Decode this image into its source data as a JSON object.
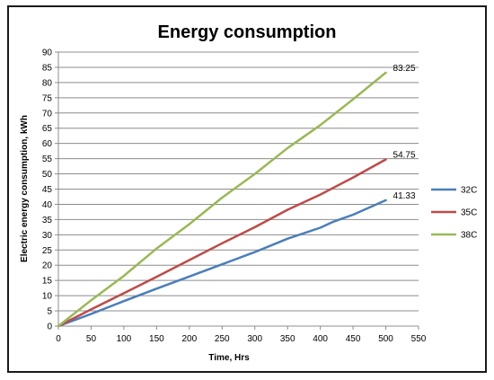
{
  "chart_data": {
    "type": "line",
    "title": "Energy consumption",
    "xlabel": "Time, Hrs",
    "ylabel": "Electric energy consumption, kWh",
    "xlim": [
      0,
      550
    ],
    "ylim": [
      0,
      90
    ],
    "xticks": [
      0,
      50,
      100,
      150,
      200,
      250,
      300,
      350,
      400,
      450,
      500,
      550
    ],
    "yticks": [
      0,
      5,
      10,
      15,
      20,
      25,
      30,
      35,
      40,
      45,
      50,
      55,
      60,
      65,
      70,
      75,
      80,
      85,
      90
    ],
    "grid": "horizontal",
    "legend_position": "right",
    "series": [
      {
        "name": "32C",
        "color": "#4a7ebb",
        "points": [
          [
            0,
            0
          ],
          [
            50,
            4
          ],
          [
            100,
            8.2
          ],
          [
            150,
            12.3
          ],
          [
            200,
            16.3
          ],
          [
            250,
            20.3
          ],
          [
            300,
            24.3
          ],
          [
            350,
            28.7
          ],
          [
            400,
            32.3
          ],
          [
            420,
            34.3
          ],
          [
            450,
            36.6
          ],
          [
            500,
            41.33
          ]
        ],
        "end_label": "41.33"
      },
      {
        "name": "35C",
        "color": "#be4b48",
        "points": [
          [
            0,
            0
          ],
          [
            50,
            5.5
          ],
          [
            100,
            10.8
          ],
          [
            150,
            16.2
          ],
          [
            200,
            21.7
          ],
          [
            250,
            27.2
          ],
          [
            300,
            32.5
          ],
          [
            350,
            38.2
          ],
          [
            400,
            43.2
          ],
          [
            450,
            48.8
          ],
          [
            500,
            54.75
          ]
        ],
        "end_label": "54.75"
      },
      {
        "name": "38C",
        "color": "#98b954",
        "points": [
          [
            0,
            0
          ],
          [
            50,
            8.5
          ],
          [
            100,
            16.5
          ],
          [
            150,
            25.5
          ],
          [
            200,
            33.5
          ],
          [
            250,
            42.2
          ],
          [
            300,
            50
          ],
          [
            350,
            58.5
          ],
          [
            400,
            66
          ],
          [
            450,
            74.5
          ],
          [
            500,
            83.25
          ]
        ],
        "end_label": "83.25"
      }
    ]
  }
}
